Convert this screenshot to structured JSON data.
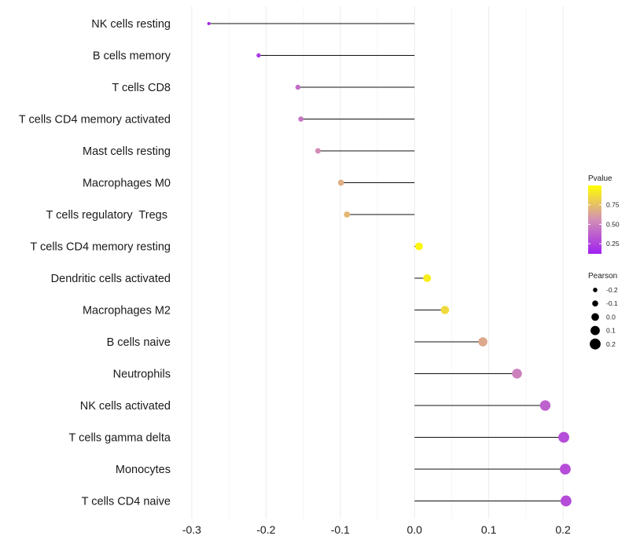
{
  "chart_data": {
    "type": "lollipop",
    "title": "",
    "xlabel": "",
    "ylabel": "",
    "xlim": [
      -0.3,
      0.2
    ],
    "x_ticks": [
      -0.3,
      -0.2,
      -0.1,
      0.0,
      0.1,
      0.2
    ],
    "x_tick_labels": [
      "-0.3",
      "-0.2",
      "-0.1",
      "0.0",
      "0.1",
      "0.2"
    ],
    "grid": true,
    "points": [
      {
        "label": "NK cells resting",
        "pearson": -0.277,
        "pvalue": 0.15
      },
      {
        "label": "B cells memory",
        "pearson": -0.21,
        "pvalue": 0.22
      },
      {
        "label": "T cells CD8",
        "pearson": -0.157,
        "pvalue": 0.42
      },
      {
        "label": "T cells CD4 memory activated",
        "pearson": -0.153,
        "pvalue": 0.45
      },
      {
        "label": "Mast cells resting",
        "pearson": -0.13,
        "pvalue": 0.55
      },
      {
        "label": "Macrophages M0",
        "pearson": -0.099,
        "pvalue": 0.68
      },
      {
        "label": "T cells regulatory  Tregs ",
        "pearson": -0.091,
        "pvalue": 0.72
      },
      {
        "label": "T cells CD4 memory resting",
        "pearson": 0.006,
        "pvalue": 0.97
      },
      {
        "label": "Dendritic cells activated",
        "pearson": 0.017,
        "pvalue": 0.93
      },
      {
        "label": "Macrophages M2",
        "pearson": 0.041,
        "pvalue": 0.85
      },
      {
        "label": "B cells naive",
        "pearson": 0.092,
        "pvalue": 0.66
      },
      {
        "label": "Neutrophils",
        "pearson": 0.138,
        "pvalue": 0.5
      },
      {
        "label": "NK cells activated",
        "pearson": 0.176,
        "pvalue": 0.38
      },
      {
        "label": "T cells gamma delta",
        "pearson": 0.201,
        "pvalue": 0.3
      },
      {
        "label": "Monocytes",
        "pearson": 0.203,
        "pvalue": 0.3
      },
      {
        "label": "T cells CD4 naive",
        "pearson": 0.204,
        "pvalue": 0.29
      }
    ],
    "legend": {
      "placement": "right",
      "pvalue": {
        "title": "Pvalue",
        "ticks": [
          0.25,
          0.5,
          0.75
        ],
        "tick_labels": [
          "0.25",
          "0.50",
          "0.75"
        ],
        "range": [
          0.12,
          1.0
        ],
        "colors": {
          "low": "#a020f0",
          "mid": "#d38fb5",
          "high": "#ffff00"
        }
      },
      "pearson": {
        "title": "Pearson",
        "values": [
          -0.2,
          -0.1,
          0.0,
          0.1,
          0.2
        ],
        "labels": [
          "-0.2",
          "-0.1",
          "0.0",
          "0.1",
          "0.2"
        ]
      }
    }
  }
}
